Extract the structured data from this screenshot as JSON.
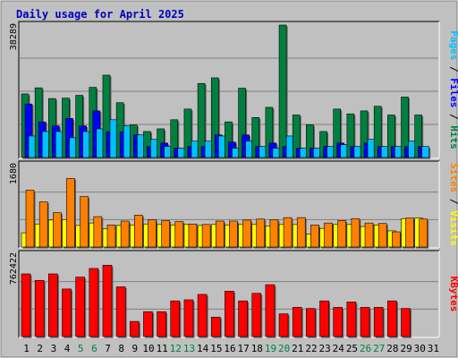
{
  "chart_data": {
    "type": "bar",
    "title": "Daily usage for April 2025",
    "days": [
      "1",
      "2",
      "3",
      "4",
      "5",
      "6",
      "7",
      "8",
      "9",
      "10",
      "11",
      "12",
      "13",
      "14",
      "15",
      "16",
      "17",
      "18",
      "19",
      "20",
      "21",
      "22",
      "23",
      "24",
      "25",
      "26",
      "27",
      "28",
      "29",
      "30",
      "31"
    ],
    "weekend_days": [
      "5",
      "6",
      "12",
      "13",
      "19",
      "20",
      "26",
      "27"
    ],
    "panels": [
      {
        "id": "requests",
        "ymax_label": "38289",
        "ymax": 38289,
        "side_labels": [
          {
            "text": "Pages",
            "color": "#00c0ff"
          },
          {
            "text": "Files",
            "color": "#0000ff"
          },
          {
            "text": "Hits",
            "color": "#008040"
          }
        ],
        "side_separator": " / ",
        "series": [
          {
            "name": "Hits",
            "color": "#008040",
            "values": [
              18380,
              20150,
              17050,
              17180,
              17970,
              20280,
              23810,
              15840,
              9420,
              7520,
              8290,
              10920,
              14010,
              21410,
              23030,
              10300,
              20040,
              11580,
              14510,
              38290,
              12290,
              9480,
              7520,
              14010,
              12620,
              13480,
              14810,
              12290,
              17490,
              12290
            ]
          },
          {
            "name": "Files",
            "color": "#0000ff",
            "values": [
              15480,
              10300,
              9150,
              11300,
              9150,
              13480,
              7390,
              7390,
              6550,
              3210,
              4190,
              2700,
              3180,
              3180,
              6550,
              4450,
              6540,
              3180,
              4190,
              3180,
              2700,
              2700,
              3180,
              4190,
              3180,
              4190,
              3180,
              3180,
              3180,
              3180
            ]
          },
          {
            "name": "Pages",
            "color": "#00c0ff",
            "values": [
              6230,
              7520,
              7520,
              5730,
              7520,
              8290,
              10920,
              9150,
              6550,
              5260,
              3180,
              2700,
              4760,
              4760,
              6230,
              2700,
              4760,
              3180,
              2700,
              6230,
              2700,
              2700,
              3180,
              3710,
              3180,
              5260,
              3180,
              3180,
              4760,
              3180
            ]
          }
        ]
      },
      {
        "id": "visitors",
        "ymax_label": "1680",
        "ymax": 1680,
        "side_labels": [
          {
            "text": "Sites",
            "color": "#ff8000"
          },
          {
            "text": "Visits",
            "color": "#ffff00"
          }
        ],
        "side_separator": " / ",
        "series": [
          {
            "name": "Visits",
            "color": "#ffff00",
            "values": [
              290,
              470,
              550,
              560,
              440,
              490,
              370,
              440,
              450,
              470,
              460,
              450,
              460,
              440,
              460,
              450,
              460,
              460,
              430,
              460,
              460,
              260,
              380,
              460,
              460,
              420,
              450,
              330,
              580,
              590
            ]
          },
          {
            "name": "Sites",
            "color": "#ff8000",
            "values": [
              1160,
              920,
              700,
              1400,
              1030,
              620,
              450,
              530,
              650,
              560,
              540,
              520,
              470,
              460,
              530,
              530,
              550,
              570,
              560,
              600,
              600,
              450,
              490,
              540,
              580,
              490,
              480,
              310,
              590,
              570
            ]
          }
        ]
      },
      {
        "id": "kbytes",
        "ymax_label": "762422",
        "ymax": 762422,
        "side_labels": [
          {
            "text": "KBytes",
            "color": "#ff0000"
          }
        ],
        "side_separator": "",
        "series": [
          {
            "name": "KBytes",
            "color": "#ff0000",
            "values": [
              580000,
              520000,
              580000,
              440000,
              550000,
              630000,
              660000,
              460000,
              140000,
              230000,
              230000,
              330000,
              340000,
              390000,
              180000,
              420000,
              330000,
              400000,
              480000,
              210000,
              270000,
              260000,
              330000,
              270000,
              320000,
              270000,
              270000,
              330000,
              260000,
              0
            ]
          }
        ]
      }
    ]
  }
}
